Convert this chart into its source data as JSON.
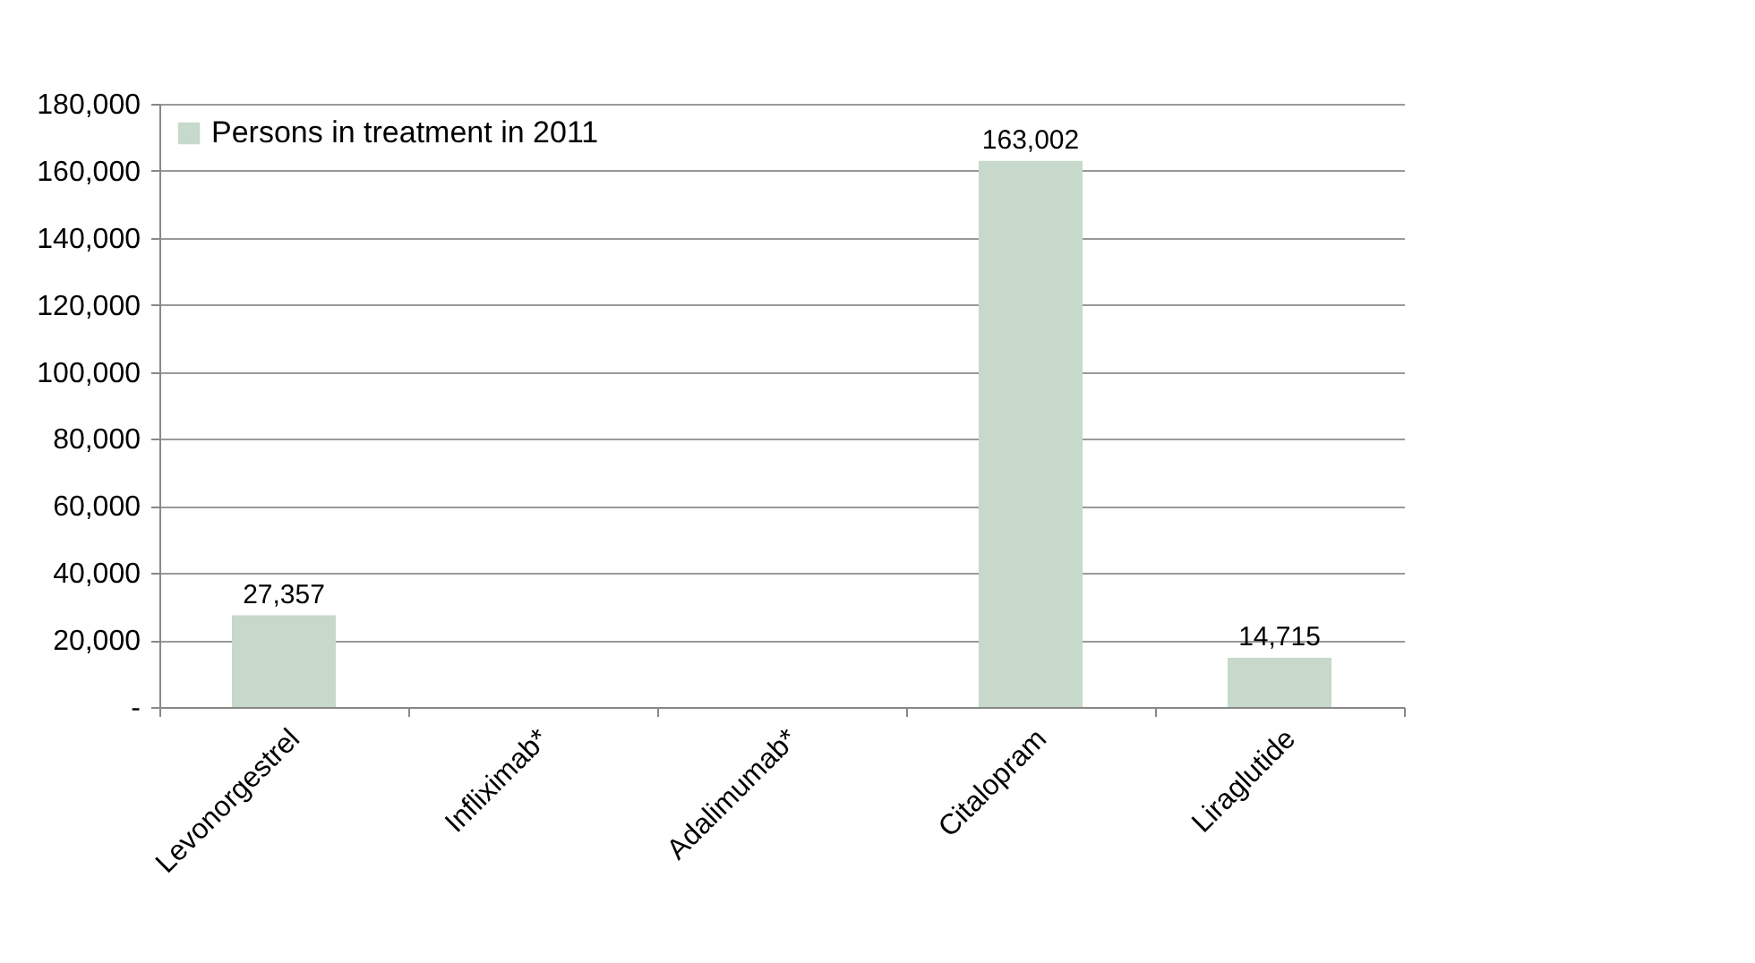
{
  "chart_data": {
    "type": "bar",
    "categories": [
      "Levonorgestrel",
      "Infliximab*",
      "Adalimumab*",
      "Citalopram",
      "Liraglutide"
    ],
    "series": [
      {
        "name": "Persons in treatment in 2011",
        "color": "#c6d9ca",
        "values": [
          27357,
          null,
          null,
          163002,
          14715
        ],
        "value_labels": [
          "27,357",
          null,
          null,
          "163,002",
          "14,715"
        ]
      }
    ],
    "ylim": [
      0,
      180000
    ],
    "yticks": [
      {
        "value": 0,
        "label": "-"
      },
      {
        "value": 20000,
        "label": "20,000"
      },
      {
        "value": 40000,
        "label": "40,000"
      },
      {
        "value": 60000,
        "label": "60,000"
      },
      {
        "value": 80000,
        "label": "80,000"
      },
      {
        "value": 100000,
        "label": "100,000"
      },
      {
        "value": 120000,
        "label": "120,000"
      },
      {
        "value": 140000,
        "label": "140,000"
      },
      {
        "value": 160000,
        "label": "160,000"
      },
      {
        "value": 180000,
        "label": "180,000"
      }
    ],
    "grid": "y",
    "legend": "top left"
  }
}
